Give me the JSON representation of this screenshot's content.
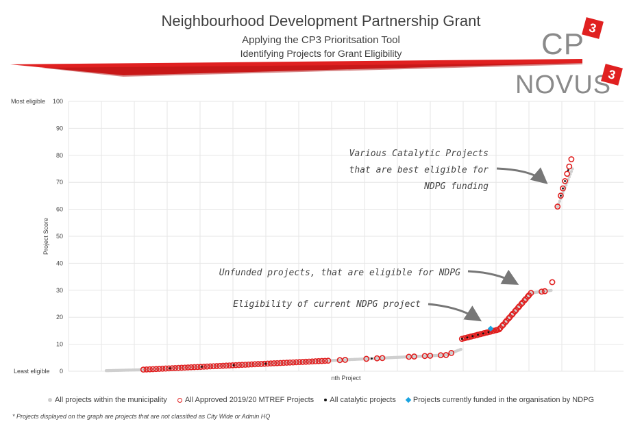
{
  "header": {
    "title": "Neighbourhood Development Partnership Grant",
    "subtitle1": "Applying the CP3 Prioritsation Tool",
    "subtitle2": "Identifying Projects for Grant Eligibility",
    "logo_cp": "CP",
    "logo_novus": "NOVUS",
    "badge": "3",
    "accent_color": "#e02020"
  },
  "chart_data": {
    "type": "scatter",
    "ylabel": "Project Score",
    "xlabel": "nth Project",
    "ylim": [
      0,
      100
    ],
    "yticks": [
      0,
      10,
      20,
      30,
      40,
      50,
      60,
      70,
      80,
      90,
      100
    ],
    "ytick_top_label": "Most eligible",
    "ytick_bottom_label": "Least eligible",
    "grid": true,
    "legend_position": "bottom",
    "series": [
      {
        "name": "All projects within the municipality",
        "color": "#cfcfcf",
        "marker": "dot"
      },
      {
        "name": "All Approved 2019/20 MTREF Projects",
        "color": "#e02020",
        "marker": "ring"
      },
      {
        "name": "All catalytic projects",
        "color": "#111111",
        "marker": "dot"
      },
      {
        "name": "Projects currently funded in the organisation by NDPG",
        "color": "#1aa3e0",
        "marker": "diamond"
      }
    ],
    "annotations": [
      {
        "lines": [
          "Various Catalytic Projects",
          "that are best eligible for",
          "NDPG funding"
        ]
      },
      {
        "lines": [
          "Unfunded projects, that are eligible for NDPG"
        ]
      },
      {
        "lines": [
          "Eligibility of current NDPG project"
        ]
      }
    ]
  },
  "footnote": "* Projects displayed on the graph are projects that are not classified as City Wide or Admin HQ"
}
